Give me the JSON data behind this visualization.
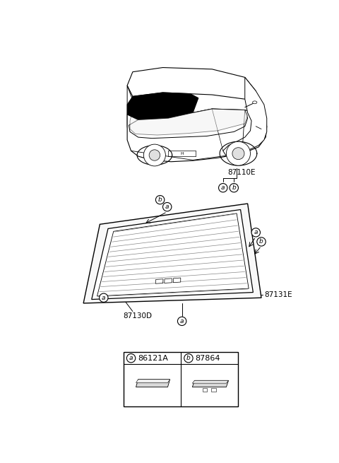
{
  "bg_color": "#ffffff",
  "fig_width": 4.8,
  "fig_height": 6.55,
  "dpi": 100,
  "part_a_label": "86121A",
  "part_b_label": "87864",
  "label_87110E": "87110E",
  "label_87130D": "87130D",
  "label_87131E": "87131E"
}
